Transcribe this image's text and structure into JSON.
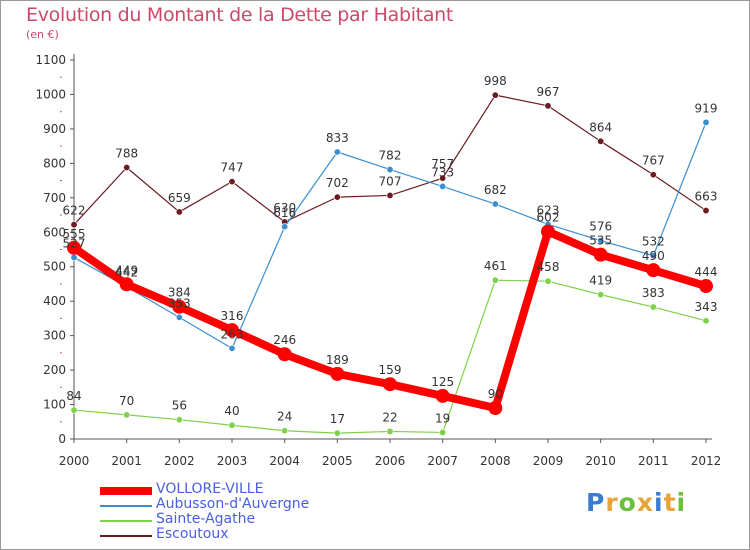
{
  "title": "Evolution du Montant de la Dette par Habitant",
  "subtitle": "(en €)",
  "logo": {
    "text": "Proxiti",
    "colors": [
      "#3a7bd5",
      "#e8a33b",
      "#6cbf3d",
      "#e8a33b",
      "#3a7bd5",
      "#e8a33b",
      "#6cbf3d"
    ]
  },
  "chart_data": {
    "type": "line",
    "title": "Evolution du Montant de la Dette par Habitant",
    "ylabel": "(en €)",
    "xlabel": "",
    "ylim": [
      0,
      1100
    ],
    "yticks": [
      0,
      100,
      200,
      300,
      400,
      500,
      600,
      700,
      800,
      900,
      1000,
      1100
    ],
    "grid": false,
    "legend_position": "bottom-left",
    "x": [
      "2000",
      "2001",
      "2002",
      "2003",
      "2004",
      "2005",
      "2006",
      "2007",
      "2008",
      "2009",
      "2010",
      "2011",
      "2012"
    ],
    "series": [
      {
        "name": "VOLLORE-VILLE",
        "color": "#ff0000",
        "values": [
          555,
          449,
          384,
          316,
          246,
          189,
          159,
          125,
          90,
          602,
          535,
          490,
          444
        ]
      },
      {
        "name": "Aubusson-d'Auvergne",
        "color": "#3a8fd1",
        "values": [
          527,
          442,
          353,
          263,
          616,
          833,
          782,
          733,
          682,
          623,
          576,
          532,
          919
        ]
      },
      {
        "name": "Sainte-Agathe",
        "color": "#7fd14a",
        "values": [
          84,
          70,
          56,
          40,
          24,
          17,
          22,
          19,
          461,
          458,
          419,
          383,
          343
        ]
      },
      {
        "name": "Escoutoux",
        "color": "#6b1a1f",
        "values": [
          622,
          788,
          659,
          747,
          630,
          702,
          707,
          757,
          998,
          967,
          864,
          767,
          663
        ]
      }
    ],
    "labels": {
      "VOLLORE-VILLE": [
        "555",
        "449",
        "384",
        "316",
        "246",
        "189",
        "159",
        "125",
        "90",
        "602",
        "535",
        "490",
        "444"
      ],
      "Aubusson-d'Auvergne": [
        "527",
        "442",
        "353",
        "263",
        "616",
        "833",
        "782",
        "733",
        "682",
        "623",
        "576",
        "532",
        "919"
      ],
      "Sainte-Agathe": [
        "84",
        "70",
        "56",
        "40",
        "24",
        "17",
        "22",
        "19",
        "461",
        "458",
        "419",
        "383",
        "343"
      ],
      "Escoutoux": [
        "622",
        "788",
        "659",
        "747",
        "630",
        "702",
        "707",
        "757",
        "998",
        "967",
        "864",
        "767",
        "663"
      ]
    }
  }
}
